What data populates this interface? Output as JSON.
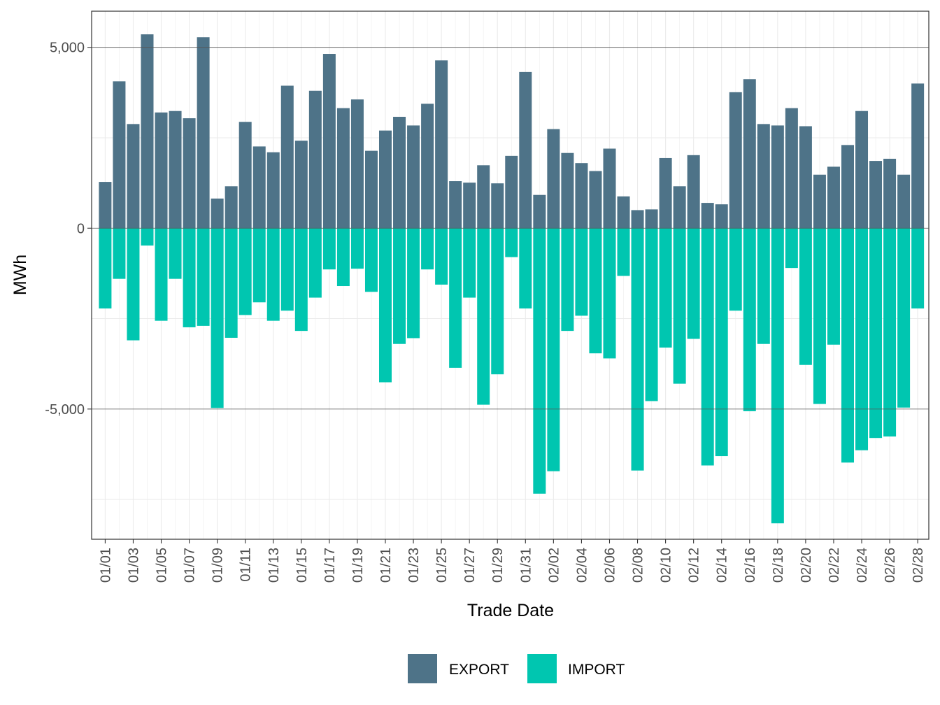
{
  "chart_data": {
    "type": "bar",
    "title": "",
    "xlabel": "Trade Date",
    "ylabel": "MWh",
    "ylim": [
      -8600,
      6000
    ],
    "y_ticks": [
      5000,
      0,
      -5000
    ],
    "y_tick_labels": [
      "5,000",
      "0",
      "-5,000"
    ],
    "y_minor_gridlines": [
      2500,
      -2500,
      -7500
    ],
    "grid": true,
    "legend_position": "bottom",
    "colors": {
      "EXPORT": "#4e7388",
      "IMPORT": "#00c6b0"
    },
    "categories": [
      "01/01",
      "01/02",
      "01/03",
      "01/04",
      "01/05",
      "01/06",
      "01/07",
      "01/08",
      "01/09",
      "01/10",
      "01/11",
      "01/12",
      "01/13",
      "01/14",
      "01/15",
      "01/16",
      "01/17",
      "01/18",
      "01/19",
      "01/20",
      "01/21",
      "01/22",
      "01/23",
      "01/24",
      "01/25",
      "01/26",
      "01/27",
      "01/28",
      "01/29",
      "01/30",
      "01/31",
      "02/01",
      "02/02",
      "02/03",
      "02/04",
      "02/05",
      "02/06",
      "02/07",
      "02/08",
      "02/09",
      "02/10",
      "02/11",
      "02/12",
      "02/13",
      "02/14",
      "02/15",
      "02/16",
      "02/17",
      "02/18",
      "02/19",
      "02/20",
      "02/21",
      "02/22",
      "02/23",
      "02/24",
      "02/25",
      "02/26",
      "02/27",
      "02/28"
    ],
    "x_tick_labels": [
      "01/01",
      "01/03",
      "01/05",
      "01/07",
      "01/09",
      "01/11",
      "01/13",
      "01/15",
      "01/17",
      "01/19",
      "01/21",
      "01/23",
      "01/25",
      "01/27",
      "01/29",
      "01/31",
      "02/02",
      "02/04",
      "02/06",
      "02/08",
      "02/10",
      "02/12",
      "02/14",
      "02/16",
      "02/18",
      "02/20",
      "02/22",
      "02/24",
      "02/26",
      "02/28"
    ],
    "series": [
      {
        "name": "EXPORT",
        "values": [
          1280,
          4060,
          2880,
          5360,
          3200,
          3240,
          3040,
          5280,
          820,
          1160,
          2940,
          2260,
          2100,
          3940,
          2420,
          3800,
          4820,
          3320,
          3560,
          2140,
          2700,
          3080,
          2840,
          3440,
          4640,
          1300,
          1260,
          1740,
          1240,
          2000,
          4320,
          920,
          2740,
          2080,
          1800,
          1580,
          2200,
          880,
          500,
          520,
          1940,
          1160,
          2020,
          700,
          660,
          3760,
          4120,
          2880,
          2840,
          3320,
          2820,
          1480,
          1700,
          2300,
          3240,
          1860,
          1920,
          1480,
          4000
        ]
      },
      {
        "name": "IMPORT",
        "values": [
          -2220,
          -1400,
          -3100,
          -480,
          -2560,
          -1400,
          -2740,
          -2700,
          -4970,
          -3030,
          -2400,
          -2050,
          -2560,
          -2280,
          -2840,
          -1920,
          -1140,
          -1600,
          -1120,
          -1760,
          -4260,
          -3200,
          -3040,
          -1140,
          -1560,
          -3860,
          -1920,
          -4880,
          -4040,
          -800,
          -2220,
          -7340,
          -6720,
          -2840,
          -2420,
          -3460,
          -3600,
          -1320,
          -6700,
          -4780,
          -3300,
          -4300,
          -3060,
          -6560,
          -6300,
          -2280,
          -5060,
          -3200,
          -8160,
          -1100,
          -3780,
          -4860,
          -3220,
          -6480,
          -6140,
          -5800,
          -5760,
          -4960,
          -2220
        ]
      }
    ]
  }
}
